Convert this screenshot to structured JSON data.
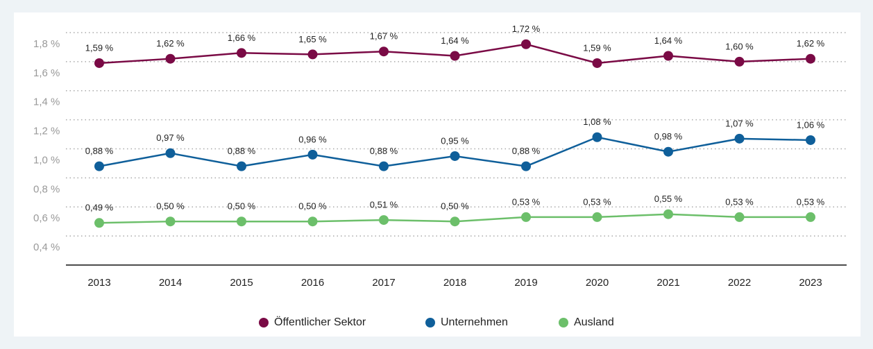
{
  "chart_data": {
    "type": "line",
    "categories": [
      "2013",
      "2014",
      "2015",
      "2016",
      "2017",
      "2018",
      "2019",
      "2020",
      "2021",
      "2022",
      "2023"
    ],
    "series": [
      {
        "name": "Öffentlicher Sektor",
        "color": "#7a0a45",
        "values": [
          1.59,
          1.62,
          1.66,
          1.65,
          1.67,
          1.64,
          1.72,
          1.59,
          1.64,
          1.6,
          1.62
        ],
        "value_labels": [
          "1,59 %",
          "1,62 %",
          "1,66 %",
          "1,65 %",
          "1,67 %",
          "1,64 %",
          "1,72 %",
          "1,59 %",
          "1,64 %",
          "1,60 %",
          "1,62 %"
        ]
      },
      {
        "name": "Unternehmen",
        "color": "#0f5f9a",
        "values": [
          0.88,
          0.97,
          0.88,
          0.96,
          0.88,
          0.95,
          0.88,
          1.08,
          0.98,
          1.07,
          1.06
        ],
        "value_labels": [
          "0,88 %",
          "0,97 %",
          "0,88 %",
          "0,96 %",
          "0,88 %",
          "0,95 %",
          "0,88 %",
          "1,08 %",
          "0,98 %",
          "1,07 %",
          "1,06 %"
        ]
      },
      {
        "name": "Ausland",
        "color": "#6cbf6a",
        "values": [
          0.49,
          0.5,
          0.5,
          0.5,
          0.51,
          0.5,
          0.53,
          0.53,
          0.55,
          0.53,
          0.53
        ],
        "value_labels": [
          "0,49 %",
          "0,50 %",
          "0,50 %",
          "0,50 %",
          "0,51 %",
          "0,50 %",
          "0,53 %",
          "0,53 %",
          "0,55 %",
          "0,53 %",
          "0,53 %"
        ]
      }
    ],
    "ylim": [
      0.2,
      1.8
    ],
    "yticks": [
      {
        "value": 0.4,
        "label": "0,4 %"
      },
      {
        "value": 0.6,
        "label": "0,6 %"
      },
      {
        "value": 0.8,
        "label": "0,8 %"
      },
      {
        "value": 1.0,
        "label": "1,0 %"
      },
      {
        "value": 1.2,
        "label": "1,2 %"
      },
      {
        "value": 1.4,
        "label": "1,4 %"
      },
      {
        "value": 1.6,
        "label": "1,6 %"
      },
      {
        "value": 1.8,
        "label": "1,8 %"
      }
    ],
    "grid": true,
    "legend": "bottom"
  }
}
